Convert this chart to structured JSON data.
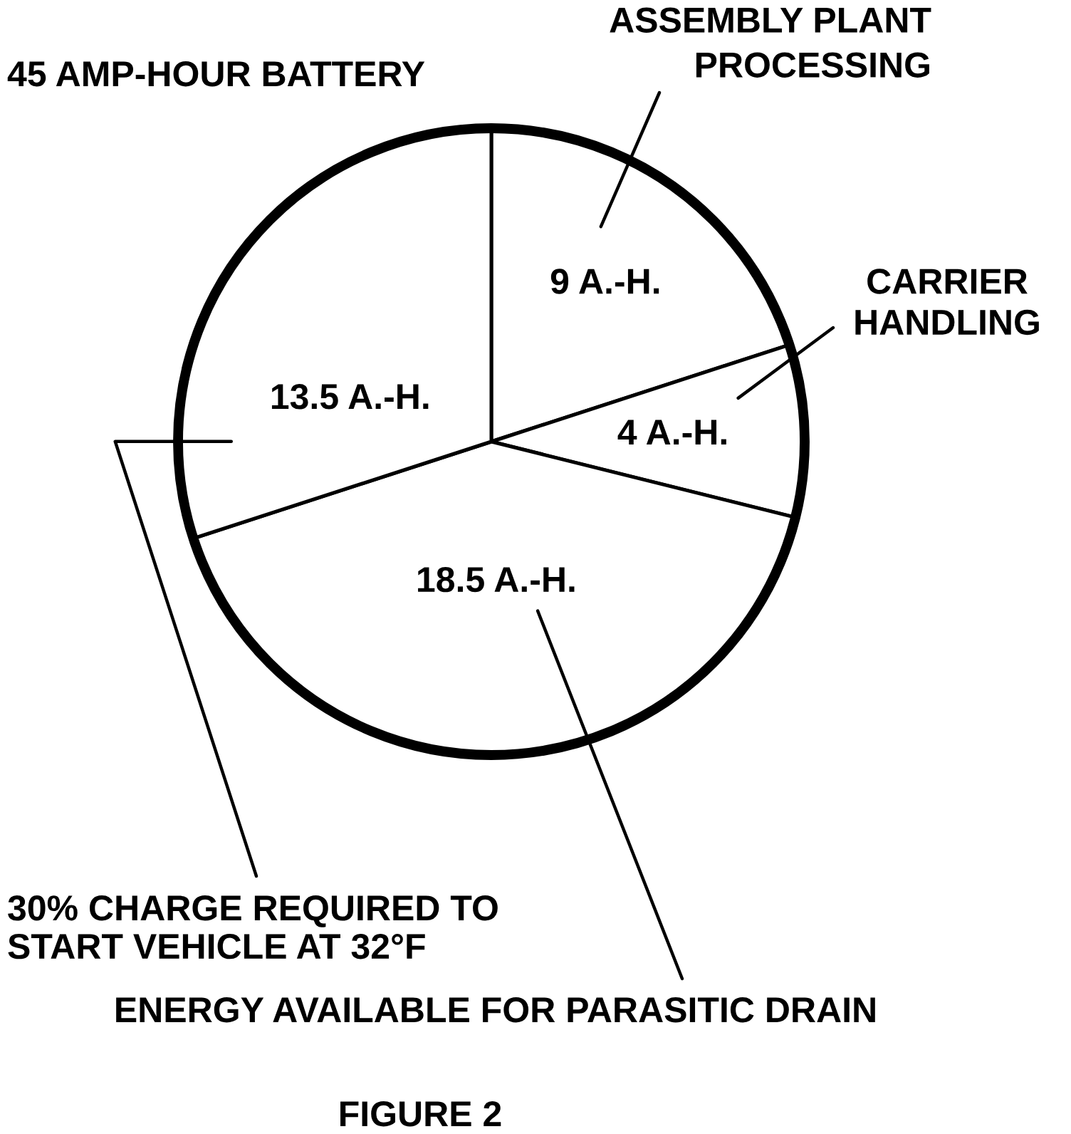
{
  "chart_data": {
    "type": "pie",
    "title": "45 AMP-HOUR BATTERY",
    "categories": [
      "ASSEMBLY PLANT\nPROCESSING",
      "CARRIER\nHANDLING",
      "ENERGY AVAILABLE FOR PARASITIC DRAIN",
      "30% CHARGE REQUIRED TO\nSTART VEHICLE AT 32°F"
    ],
    "values": [
      9,
      4,
      18.5,
      13.5
    ],
    "colors": [
      "#ffffff",
      "#ffffff",
      "#ffffff",
      "#ffffff"
    ],
    "value_labels": [
      "9 A.-H.",
      "4 A.-H.",
      "18.5 A.-H.",
      "13.5 A.-H."
    ],
    "annotations": [
      "FIGURE 2"
    ]
  }
}
